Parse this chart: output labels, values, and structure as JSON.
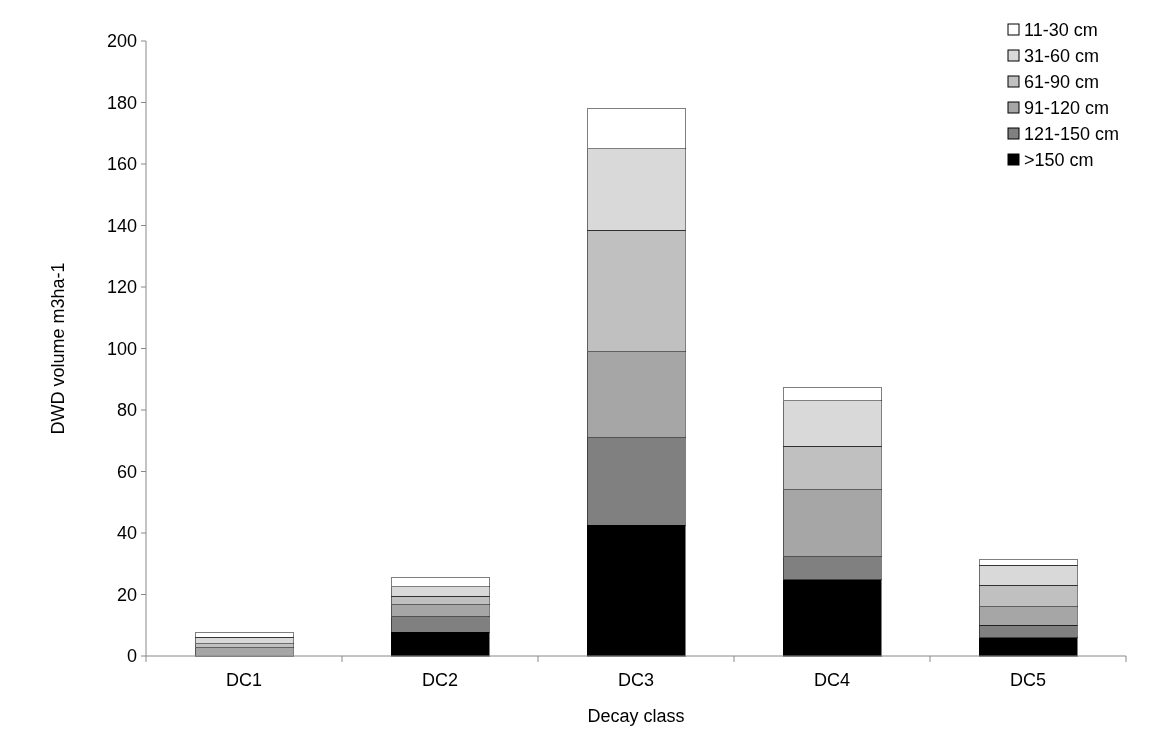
{
  "chart_data": {
    "type": "bar",
    "stacked": true,
    "xlabel": "Decay class",
    "ylabel": "DWD volume m3ha-1",
    "categories": [
      "DC1",
      "DC2",
      "DC3",
      "DC4",
      "DC5"
    ],
    "series": [
      {
        "name": ">150 cm",
        "color": "#000000",
        "values": [
          0,
          7.8,
          42.5,
          24.8,
          6
        ]
      },
      {
        "name": "121-150 cm",
        "color": "#808080",
        "values": [
          0,
          4.9,
          28.5,
          7.5,
          4
        ]
      },
      {
        "name": "91-120 cm",
        "color": "#a6a6a6",
        "values": [
          2.7,
          4.0,
          28,
          21.7,
          6
        ]
      },
      {
        "name": "61-90 cm",
        "color": "#c0c0c0",
        "values": [
          1.3,
          2.8,
          39.5,
          14.2,
          7
        ]
      },
      {
        "name": "31-60 cm",
        "color": "#d9d9d9",
        "values": [
          2.1,
          3.0,
          26.5,
          14.8,
          6.5
        ]
      },
      {
        "name": "11-30 cm",
        "color": "#ffffff",
        "values": [
          1.6,
          3.0,
          13,
          4.3,
          2
        ]
      }
    ],
    "ylim": [
      0,
      200
    ],
    "yticks": [
      0,
      20,
      40,
      60,
      80,
      100,
      120,
      140,
      160,
      180,
      200
    ],
    "legend": "top right"
  }
}
